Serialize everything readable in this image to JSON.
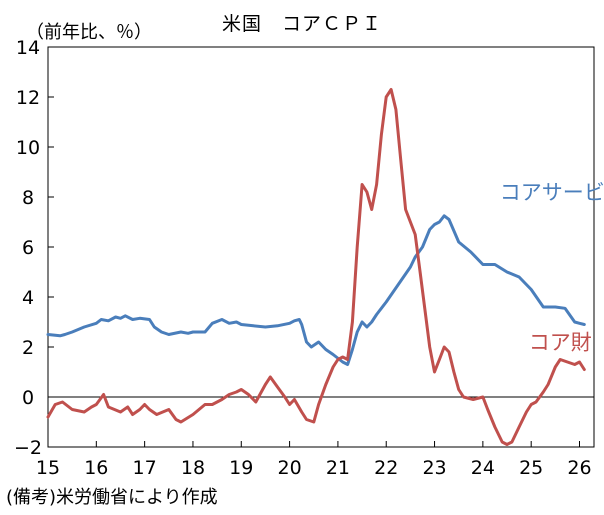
{
  "chart_data": {
    "type": "line",
    "title": "米国　コアＣＰＩ",
    "ylabel": "（前年比、％）",
    "xlabel": "",
    "source": "(備考)米労働省により作成",
    "ylim": [
      -2,
      14
    ],
    "yticks": [
      -2,
      0,
      2,
      4,
      6,
      8,
      10,
      12,
      14
    ],
    "xlim": [
      15,
      26.3
    ],
    "xticks": [
      15,
      16,
      17,
      18,
      19,
      20,
      21,
      22,
      23,
      24,
      25,
      26
    ],
    "x_tick_labels": [
      "15",
      "16",
      "17",
      "18",
      "19",
      "20",
      "21",
      "22",
      "23",
      "24",
      "25",
      "26"
    ],
    "y_tick_labels": [
      "−2",
      "0",
      "2",
      "4",
      "6",
      "8",
      "10",
      "12",
      "14"
    ],
    "grid": false,
    "zero_line": true,
    "series": [
      {
        "name": "コアサービス",
        "color": "#4a7ebb",
        "points": [
          [
            15.0,
            2.5
          ],
          [
            15.25,
            2.45
          ],
          [
            15.35,
            2.5
          ],
          [
            15.5,
            2.6
          ],
          [
            15.75,
            2.8
          ],
          [
            16.0,
            2.95
          ],
          [
            16.1,
            3.1
          ],
          [
            16.25,
            3.05
          ],
          [
            16.4,
            3.2
          ],
          [
            16.5,
            3.15
          ],
          [
            16.6,
            3.25
          ],
          [
            16.75,
            3.1
          ],
          [
            16.9,
            3.15
          ],
          [
            17.1,
            3.1
          ],
          [
            17.2,
            2.8
          ],
          [
            17.35,
            2.6
          ],
          [
            17.5,
            2.5
          ],
          [
            17.75,
            2.6
          ],
          [
            17.9,
            2.55
          ],
          [
            18.0,
            2.6
          ],
          [
            18.25,
            2.6
          ],
          [
            18.4,
            2.95
          ],
          [
            18.6,
            3.1
          ],
          [
            18.75,
            2.95
          ],
          [
            18.9,
            3.0
          ],
          [
            19.0,
            2.9
          ],
          [
            19.25,
            2.85
          ],
          [
            19.5,
            2.8
          ],
          [
            19.75,
            2.85
          ],
          [
            20.0,
            2.95
          ],
          [
            20.1,
            3.05
          ],
          [
            20.2,
            3.1
          ],
          [
            20.25,
            2.9
          ],
          [
            20.35,
            2.2
          ],
          [
            20.45,
            2.0
          ],
          [
            20.6,
            2.2
          ],
          [
            20.75,
            1.9
          ],
          [
            20.9,
            1.7
          ],
          [
            21.1,
            1.4
          ],
          [
            21.2,
            1.3
          ],
          [
            21.3,
            1.9
          ],
          [
            21.4,
            2.6
          ],
          [
            21.5,
            3.0
          ],
          [
            21.6,
            2.8
          ],
          [
            21.7,
            3.0
          ],
          [
            21.8,
            3.3
          ],
          [
            22.0,
            3.8
          ],
          [
            22.25,
            4.5
          ],
          [
            22.5,
            5.2
          ],
          [
            22.6,
            5.6
          ],
          [
            22.75,
            6.0
          ],
          [
            22.9,
            6.7
          ],
          [
            23.0,
            6.9
          ],
          [
            23.1,
            7.0
          ],
          [
            23.2,
            7.25
          ],
          [
            23.3,
            7.1
          ],
          [
            23.5,
            6.2
          ],
          [
            23.75,
            5.8
          ],
          [
            24.0,
            5.3
          ],
          [
            24.25,
            5.3
          ],
          [
            24.5,
            5.0
          ],
          [
            24.75,
            4.8
          ],
          [
            25.0,
            4.3
          ],
          [
            25.25,
            3.6
          ],
          [
            25.5,
            3.6
          ],
          [
            25.7,
            3.55
          ],
          [
            25.9,
            3.0
          ],
          [
            26.0,
            2.95
          ],
          [
            26.1,
            2.9
          ]
        ]
      },
      {
        "name": "コア財",
        "color": "#c0504d",
        "points": [
          [
            15.0,
            -0.8
          ],
          [
            15.15,
            -0.3
          ],
          [
            15.3,
            -0.2
          ],
          [
            15.5,
            -0.5
          ],
          [
            15.75,
            -0.6
          ],
          [
            15.9,
            -0.4
          ],
          [
            16.0,
            -0.3
          ],
          [
            16.15,
            0.1
          ],
          [
            16.25,
            -0.4
          ],
          [
            16.5,
            -0.6
          ],
          [
            16.65,
            -0.4
          ],
          [
            16.75,
            -0.7
          ],
          [
            16.9,
            -0.5
          ],
          [
            17.0,
            -0.3
          ],
          [
            17.1,
            -0.5
          ],
          [
            17.25,
            -0.7
          ],
          [
            17.5,
            -0.5
          ],
          [
            17.65,
            -0.9
          ],
          [
            17.75,
            -1.0
          ],
          [
            18.0,
            -0.7
          ],
          [
            18.25,
            -0.3
          ],
          [
            18.4,
            -0.3
          ],
          [
            18.6,
            -0.1
          ],
          [
            18.75,
            0.1
          ],
          [
            18.9,
            0.2
          ],
          [
            19.0,
            0.3
          ],
          [
            19.15,
            0.1
          ],
          [
            19.3,
            -0.2
          ],
          [
            19.5,
            0.5
          ],
          [
            19.6,
            0.8
          ],
          [
            19.75,
            0.4
          ],
          [
            19.9,
            0.0
          ],
          [
            20.0,
            -0.3
          ],
          [
            20.1,
            -0.1
          ],
          [
            20.25,
            -0.6
          ],
          [
            20.35,
            -0.9
          ],
          [
            20.5,
            -1.0
          ],
          [
            20.6,
            -0.3
          ],
          [
            20.75,
            0.5
          ],
          [
            20.9,
            1.2
          ],
          [
            21.0,
            1.5
          ],
          [
            21.1,
            1.6
          ],
          [
            21.2,
            1.5
          ],
          [
            21.3,
            3.0
          ],
          [
            21.4,
            6.0
          ],
          [
            21.5,
            8.5
          ],
          [
            21.6,
            8.2
          ],
          [
            21.7,
            7.5
          ],
          [
            21.8,
            8.5
          ],
          [
            21.9,
            10.5
          ],
          [
            22.0,
            12.0
          ],
          [
            22.1,
            12.3
          ],
          [
            22.2,
            11.5
          ],
          [
            22.3,
            9.5
          ],
          [
            22.4,
            7.5
          ],
          [
            22.5,
            7.0
          ],
          [
            22.6,
            6.5
          ],
          [
            22.7,
            5.0
          ],
          [
            22.8,
            3.5
          ],
          [
            22.9,
            2.0
          ],
          [
            23.0,
            1.0
          ],
          [
            23.1,
            1.5
          ],
          [
            23.2,
            2.0
          ],
          [
            23.3,
            1.8
          ],
          [
            23.4,
            1.0
          ],
          [
            23.5,
            0.3
          ],
          [
            23.6,
            0.0
          ],
          [
            23.8,
            -0.1
          ],
          [
            24.0,
            0.0
          ],
          [
            24.1,
            -0.5
          ],
          [
            24.25,
            -1.2
          ],
          [
            24.4,
            -1.8
          ],
          [
            24.5,
            -1.9
          ],
          [
            24.6,
            -1.8
          ],
          [
            24.75,
            -1.2
          ],
          [
            24.9,
            -0.6
          ],
          [
            25.0,
            -0.3
          ],
          [
            25.1,
            -0.2
          ],
          [
            25.25,
            0.2
          ],
          [
            25.35,
            0.5
          ],
          [
            25.5,
            1.2
          ],
          [
            25.6,
            1.5
          ],
          [
            25.75,
            1.4
          ],
          [
            25.9,
            1.3
          ],
          [
            26.0,
            1.4
          ],
          [
            26.1,
            1.1
          ]
        ]
      }
    ],
    "annotations": [
      {
        "text": "コアサービス",
        "series": 0,
        "x": 24.35,
        "y": 7.9
      },
      {
        "text": "コア財",
        "series": 1,
        "x": 24.95,
        "y": 1.9
      }
    ]
  }
}
